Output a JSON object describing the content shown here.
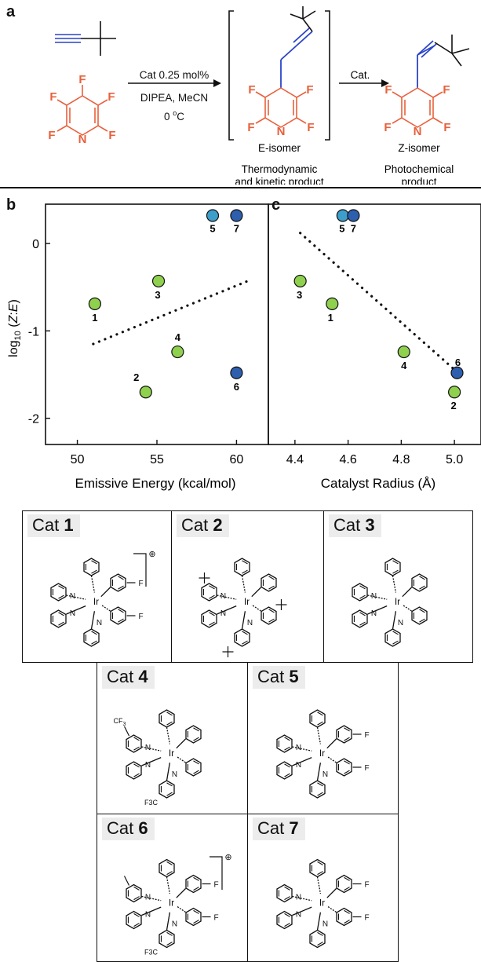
{
  "panels": {
    "a": "a",
    "b": "b",
    "c": "c"
  },
  "scheme": {
    "condition_line1": "Cat 0.25 mol%",
    "condition_line2": "DIPEA, MeCN",
    "condition_line3_base": "0 ",
    "condition_line3_sup": "o",
    "condition_line3_unit": "C",
    "cat_arrow": "Cat.",
    "e_isomer": "E-isomer",
    "z_isomer": "Z-isomer",
    "e_desc_1": "Thermodynamic",
    "e_desc_2": "and kinetic product",
    "z_desc_1": "Photochemical",
    "z_desc_2": "product",
    "atom_F": "F",
    "atom_N": "N"
  },
  "colors": {
    "green": "#8fd14f",
    "teal": "#3d9ecb",
    "blue": "#2e5fae",
    "orange": "#e8603c",
    "alkyne_blue": "#2a44c8"
  },
  "chart_data": [
    {
      "type": "scatter",
      "panel": "b",
      "xlabel": "Emissive Energy (kcal/mol)",
      "ylabel": "log10 (Z:E)",
      "ylabel_parts": {
        "log": "log",
        "sub": "10",
        "open": " (",
        "z": "Z",
        "colon": ":",
        "e": "E",
        "close": ")"
      },
      "xlim": [
        48,
        62
      ],
      "ylim": [
        -2.3,
        0.45
      ],
      "xticks": [
        "50",
        "55",
        "60"
      ],
      "xtick_values": [
        50,
        55,
        60
      ],
      "yticks": [
        "0",
        "-1",
        "-2"
      ],
      "ytick_values": [
        0,
        -1,
        -2
      ],
      "points": [
        {
          "label": "1",
          "x": 51.1,
          "y": -0.69,
          "color": "green"
        },
        {
          "label": "2",
          "x": 54.3,
          "y": -1.7,
          "color": "green"
        },
        {
          "label": "3",
          "x": 55.1,
          "y": -0.43,
          "color": "green"
        },
        {
          "label": "4",
          "x": 56.3,
          "y": -1.24,
          "color": "green"
        },
        {
          "label": "5",
          "x": 58.5,
          "y": 0.32,
          "color": "teal"
        },
        {
          "label": "6",
          "x": 60.0,
          "y": -1.48,
          "color": "blue"
        },
        {
          "label": "7",
          "x": 60.0,
          "y": 0.32,
          "color": "blue"
        }
      ],
      "trendline": {
        "x": [
          51,
          60.7
        ],
        "y": [
          -1.15,
          -0.43
        ]
      },
      "grid": false
    },
    {
      "type": "scatter",
      "panel": "c",
      "xlabel": "Catalyst Radius (Å)",
      "xlim": [
        4.3,
        5.1
      ],
      "ylim": [
        -2.3,
        0.45
      ],
      "xticks": [
        "4.4",
        "4.6",
        "4.8",
        "5.0"
      ],
      "xtick_values": [
        4.4,
        4.6,
        4.8,
        5.0
      ],
      "points": [
        {
          "label": "1",
          "x": 4.54,
          "y": -0.69,
          "color": "green"
        },
        {
          "label": "2",
          "x": 5.0,
          "y": -1.7,
          "color": "green"
        },
        {
          "label": "3",
          "x": 4.42,
          "y": -0.43,
          "color": "green"
        },
        {
          "label": "4",
          "x": 4.81,
          "y": -1.24,
          "color": "green"
        },
        {
          "label": "5",
          "x": 4.58,
          "y": 0.32,
          "color": "teal"
        },
        {
          "label": "6",
          "x": 5.01,
          "y": -1.48,
          "color": "blue"
        },
        {
          "label": "7",
          "x": 4.62,
          "y": 0.32,
          "color": "blue"
        }
      ],
      "trendline": {
        "x": [
          4.42,
          5.01
        ],
        "y": [
          0.12,
          -1.47
        ]
      },
      "grid": false
    }
  ],
  "catalysts": [
    {
      "prefix": "Cat ",
      "num": "1",
      "charged": true,
      "subs": [
        "F"
      ],
      "label_N": "N",
      "label_Ir": "Ir"
    },
    {
      "prefix": "Cat ",
      "num": "2",
      "charged": false,
      "subs": [],
      "label_N": "N",
      "label_Ir": "Ir"
    },
    {
      "prefix": "Cat ",
      "num": "3",
      "charged": false,
      "subs": [],
      "label_N": "N",
      "label_Ir": "Ir"
    },
    {
      "prefix": "Cat ",
      "num": "4",
      "charged": false,
      "subs": [
        "CF3"
      ],
      "sub_text": "CF",
      "sub_index": "3",
      "sub_text_rev": "F3C",
      "label_N": "N",
      "label_Ir": "Ir"
    },
    {
      "prefix": "Cat ",
      "num": "5",
      "charged": false,
      "subs": [
        "F"
      ],
      "label_N": "N",
      "label_Ir": "Ir"
    },
    {
      "prefix": "Cat ",
      "num": "6",
      "charged": true,
      "subs": [
        "F",
        "CF3"
      ],
      "sub_text_rev": "F3C",
      "label_N": "N",
      "label_Ir": "Ir"
    },
    {
      "prefix": "Cat ",
      "num": "7",
      "charged": false,
      "subs": [
        "F"
      ],
      "label_N": "N",
      "label_Ir": "Ir"
    }
  ],
  "charge_symbol": "⊕"
}
